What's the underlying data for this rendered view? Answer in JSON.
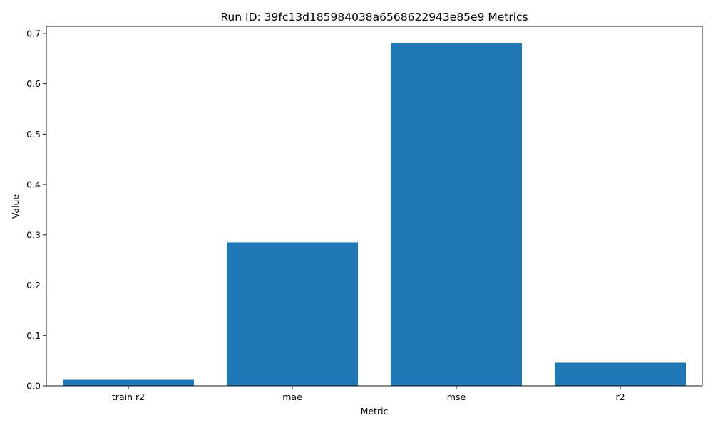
{
  "chart_data": {
    "type": "bar",
    "title": "Run ID: 39fc13d185984038a6568622943e85e9 Metrics",
    "xlabel": "Metric",
    "ylabel": "Value",
    "categories": [
      "train r2",
      "mae",
      "mse",
      "r2"
    ],
    "values": [
      0.012,
      0.285,
      0.68,
      0.046
    ],
    "ylim": [
      0,
      0.714
    ],
    "yticks": [
      0.0,
      0.1,
      0.2,
      0.3,
      0.4,
      0.5,
      0.6,
      0.7
    ],
    "ytick_labels": [
      "0.0",
      "0.1",
      "0.2",
      "0.3",
      "0.4",
      "0.5",
      "0.6",
      "0.7"
    ],
    "bar_color": "#1f77b4",
    "grid": false,
    "legend": "none"
  }
}
